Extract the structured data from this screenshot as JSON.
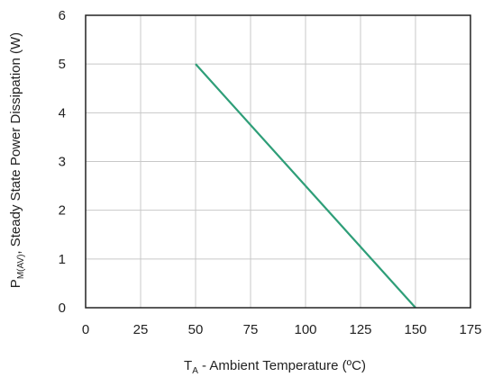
{
  "chart_data": {
    "type": "line",
    "xlabel": "T",
    "xlabel_sub": "A",
    "xlabel_rest": " - Ambient Temperature (ºC)",
    "ylabel": "P",
    "ylabel_sub": "M(AV)",
    "ylabel_rest": ", Steady State Power Dissipation (W)",
    "xlim": [
      0,
      175
    ],
    "ylim": [
      0,
      6
    ],
    "xticks": [
      "0",
      "25",
      "50",
      "75",
      "100",
      "125",
      "150",
      "175"
    ],
    "yticks": [
      "0",
      "1",
      "2",
      "3",
      "4",
      "5",
      "6"
    ],
    "grid": true,
    "series": [
      {
        "color": "#2e9e78",
        "x": [
          50,
          150
        ],
        "y": [
          5,
          0
        ]
      }
    ]
  }
}
